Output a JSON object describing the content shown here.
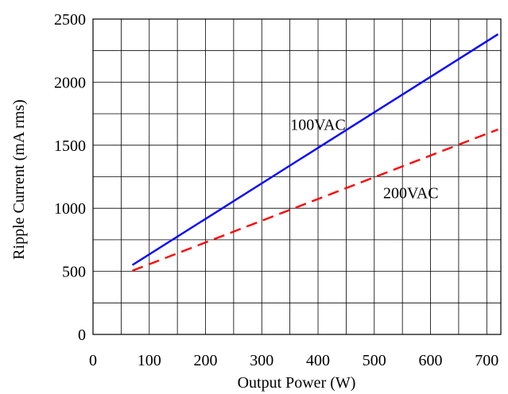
{
  "chart_data": {
    "type": "line",
    "xlabel": "Output Power (W)",
    "ylabel": "Ripple Current (mA rms)",
    "xlim": [
      0,
      725
    ],
    "ylim": [
      0,
      2500
    ],
    "x_ticks": [
      0,
      100,
      200,
      300,
      400,
      500,
      600,
      700
    ],
    "y_ticks": [
      0,
      500,
      1000,
      1500,
      2000,
      2500
    ],
    "x_tick_labels": [
      "0",
      "100",
      "200",
      "300",
      "400",
      "500",
      "600",
      "700"
    ],
    "y_tick_labels": [
      "0",
      "500",
      "1000",
      "1500",
      "2000",
      "2500"
    ],
    "grid": true,
    "legend": "none",
    "series": [
      {
        "name": "100VAC",
        "color": "#0000ff",
        "dash": "solid",
        "x": [
          70,
          720
        ],
        "y": [
          550,
          2380
        ]
      },
      {
        "name": "200VAC",
        "color": "#ff0000",
        "dash": "dashed",
        "x": [
          70,
          720
        ],
        "y": [
          505,
          1625
        ]
      }
    ],
    "annotations": [
      {
        "text": "100VAC",
        "series": "100VAC",
        "at_x": 400,
        "at_y": 1620
      },
      {
        "text": "200VAC",
        "series": "200VAC",
        "at_x": 565,
        "at_y": 1080
      }
    ]
  }
}
